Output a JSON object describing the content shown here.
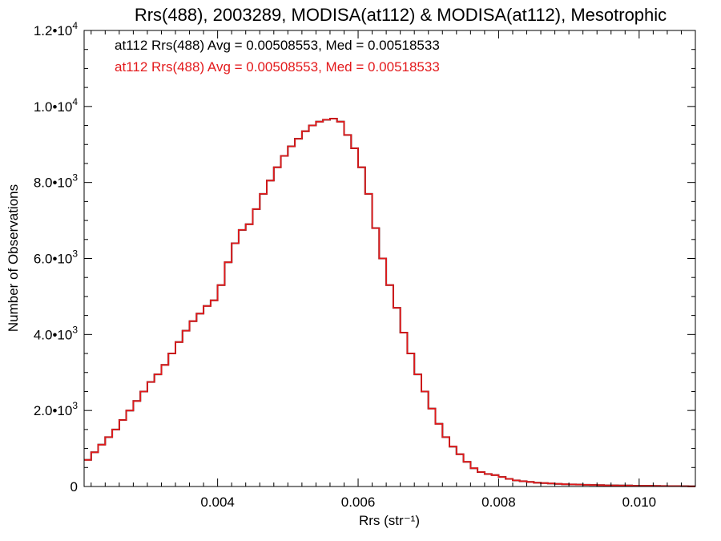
{
  "chart_data": {
    "type": "line",
    "step": true,
    "title": "Rrs(488), 2003289, MODISA(at112) & MODISA(at112), Mesotrophic",
    "xlabel": "Rrs (str⁻¹)",
    "ylabel": "Number of Observations",
    "xlim": [
      0.0021,
      0.0108
    ],
    "ylim": [
      0,
      12000
    ],
    "x_ticks": [
      {
        "value": 0.004,
        "label": "0.004"
      },
      {
        "value": 0.006,
        "label": "0.006"
      },
      {
        "value": 0.008,
        "label": "0.008"
      },
      {
        "value": 0.01,
        "label": "0.010"
      }
    ],
    "y_ticks": [
      {
        "value": 0,
        "label": "0"
      },
      {
        "value": 2000,
        "label": "2.0•1",
        "exp": "3"
      },
      {
        "value": 4000,
        "label": "4.0•1",
        "exp": "3"
      },
      {
        "value": 6000,
        "label": "6.0•1",
        "exp": "3"
      },
      {
        "value": 8000,
        "label": "8.0•1",
        "exp": "3"
      },
      {
        "value": 10000,
        "label": "1.0•1",
        "exp": "4"
      },
      {
        "value": 12000,
        "label": "1.2•1",
        "exp": "4"
      }
    ],
    "grid": false,
    "annotations": [
      {
        "text": "at112 Rrs(488) Avg = 0.00508553, Med = 0.00518533",
        "color": "#000000"
      },
      {
        "text": "at112 Rrs(488) Avg = 0.00508553, Med = 0.00518533",
        "color": "#e31a1c"
      }
    ],
    "series": [
      {
        "color": "#000000",
        "x": [
          0.0021,
          0.0022,
          0.0023,
          0.0024,
          0.0025,
          0.0026,
          0.0027,
          0.0028,
          0.0029,
          0.003,
          0.0031,
          0.0032,
          0.0033,
          0.0034,
          0.0035,
          0.0036,
          0.0037,
          0.0038,
          0.0039,
          0.004,
          0.0041,
          0.0042,
          0.0043,
          0.0044,
          0.0045,
          0.0046,
          0.0047,
          0.0048,
          0.0049,
          0.005,
          0.0051,
          0.0052,
          0.0053,
          0.0054,
          0.0055,
          0.0056,
          0.0057,
          0.0058,
          0.0059,
          0.006,
          0.0061,
          0.0062,
          0.0063,
          0.0064,
          0.0065,
          0.0066,
          0.0067,
          0.0068,
          0.0069,
          0.007,
          0.0071,
          0.0072,
          0.0073,
          0.0074,
          0.0075,
          0.0076,
          0.0077,
          0.0078,
          0.0079,
          0.008,
          0.0081,
          0.0082,
          0.0083,
          0.0084,
          0.0085,
          0.0086,
          0.0087,
          0.0088,
          0.0089,
          0.009,
          0.0091,
          0.0092,
          0.0093,
          0.0094,
          0.0095,
          0.0096,
          0.0097,
          0.0098,
          0.0099,
          0.01,
          0.0101,
          0.0102,
          0.0103,
          0.0104,
          0.0105,
          0.0106,
          0.0107
        ],
        "y": [
          700,
          900,
          1100,
          1300,
          1500,
          1750,
          2000,
          2250,
          2500,
          2750,
          2950,
          3200,
          3500,
          3800,
          4100,
          4350,
          4550,
          4750,
          4900,
          5300,
          5900,
          6400,
          6750,
          6900,
          7300,
          7700,
          8050,
          8400,
          8700,
          8950,
          9150,
          9350,
          9500,
          9600,
          9650,
          9680,
          9600,
          9250,
          8900,
          8400,
          7700,
          6800,
          6000,
          5300,
          4700,
          4050,
          3500,
          2950,
          2500,
          2050,
          1650,
          1300,
          1050,
          850,
          650,
          480,
          380,
          330,
          300,
          250,
          200,
          160,
          140,
          120,
          100,
          90,
          80,
          70,
          60,
          55,
          50,
          45,
          40,
          35,
          30,
          30,
          25,
          25,
          20,
          20,
          18,
          15,
          12,
          10,
          10,
          8,
          5
        ]
      },
      {
        "color": "#e31a1c",
        "x": [
          0.0021,
          0.0022,
          0.0023,
          0.0024,
          0.0025,
          0.0026,
          0.0027,
          0.0028,
          0.0029,
          0.003,
          0.0031,
          0.0032,
          0.0033,
          0.0034,
          0.0035,
          0.0036,
          0.0037,
          0.0038,
          0.0039,
          0.004,
          0.0041,
          0.0042,
          0.0043,
          0.0044,
          0.0045,
          0.0046,
          0.0047,
          0.0048,
          0.0049,
          0.005,
          0.0051,
          0.0052,
          0.0053,
          0.0054,
          0.0055,
          0.0056,
          0.0057,
          0.0058,
          0.0059,
          0.006,
          0.0061,
          0.0062,
          0.0063,
          0.0064,
          0.0065,
          0.0066,
          0.0067,
          0.0068,
          0.0069,
          0.007,
          0.0071,
          0.0072,
          0.0073,
          0.0074,
          0.0075,
          0.0076,
          0.0077,
          0.0078,
          0.0079,
          0.008,
          0.0081,
          0.0082,
          0.0083,
          0.0084,
          0.0085,
          0.0086,
          0.0087,
          0.0088,
          0.0089,
          0.009,
          0.0091,
          0.0092,
          0.0093,
          0.0094,
          0.0095,
          0.0096,
          0.0097,
          0.0098,
          0.0099,
          0.01,
          0.0101,
          0.0102,
          0.0103,
          0.0104,
          0.0105,
          0.0106,
          0.0107
        ],
        "y": [
          700,
          900,
          1100,
          1300,
          1500,
          1750,
          2000,
          2250,
          2500,
          2750,
          2950,
          3200,
          3500,
          3800,
          4100,
          4350,
          4550,
          4750,
          4900,
          5300,
          5900,
          6400,
          6750,
          6900,
          7300,
          7700,
          8050,
          8400,
          8700,
          8950,
          9150,
          9350,
          9500,
          9600,
          9650,
          9680,
          9600,
          9250,
          8900,
          8400,
          7700,
          6800,
          6000,
          5300,
          4700,
          4050,
          3500,
          2950,
          2500,
          2050,
          1650,
          1300,
          1050,
          850,
          650,
          480,
          380,
          330,
          300,
          250,
          200,
          160,
          140,
          120,
          100,
          90,
          80,
          70,
          60,
          55,
          50,
          45,
          40,
          35,
          30,
          30,
          25,
          25,
          20,
          20,
          18,
          15,
          12,
          10,
          10,
          8,
          5
        ]
      }
    ]
  }
}
